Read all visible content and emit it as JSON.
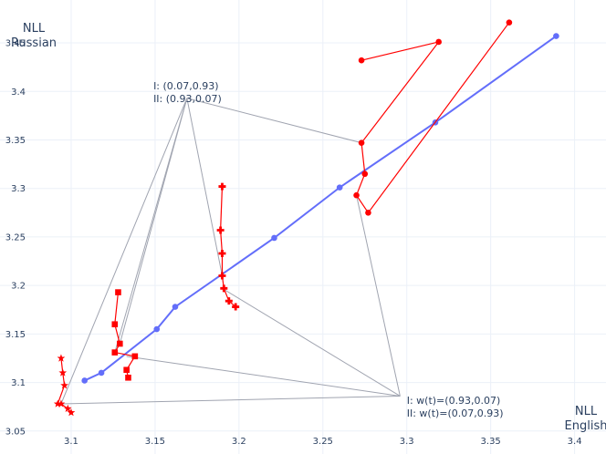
{
  "chart_data": {
    "type": "scatter",
    "xlabel_lines": [
      "NLL",
      "English"
    ],
    "ylabel_lines": [
      "NLL",
      "Russian"
    ],
    "xlim": [
      3.075,
      3.41
    ],
    "ylim": [
      3.047,
      3.466
    ],
    "xticks": [
      3.1,
      3.15,
      3.2,
      3.25,
      3.3,
      3.35,
      3.4
    ],
    "xtick_labels": [
      "3.1",
      "3.15",
      "3.2",
      "3.25",
      "3.3",
      "3.35",
      "3.4"
    ],
    "yticks": [
      3.05,
      3.1,
      3.15,
      3.2,
      3.25,
      3.3,
      3.35,
      3.4,
      3.45
    ],
    "ytick_labels": [
      "3.05",
      "3.1",
      "3.15",
      "3.2",
      "3.25",
      "3.3",
      "3.35",
      "3.4",
      "3.45"
    ],
    "grid": true,
    "colors": {
      "blue": "#636efa",
      "red": "#ff0000",
      "annotation_line": "#a0a4b0",
      "grid": "#ebf0f8"
    },
    "series": [
      {
        "mode": "lines+markers",
        "marker": "circle",
        "color": "#636efa",
        "x": [
          3.108,
          3.118,
          3.151,
          3.162,
          3.221,
          3.26,
          3.317,
          3.389
        ],
        "y": [
          3.102,
          3.11,
          3.155,
          3.178,
          3.249,
          3.301,
          3.368,
          3.457
        ]
      },
      {
        "mode": "lines+markers",
        "marker": "circle",
        "color": "#ff0000",
        "x": [
          3.273,
          3.319,
          3.273,
          3.275,
          3.27,
          3.277,
          3.361
        ],
        "y": [
          3.432,
          3.451,
          3.347,
          3.315,
          3.293,
          3.275,
          3.471
        ]
      },
      {
        "mode": "lines+markers",
        "marker": "cross",
        "color": "#ff0000",
        "x": [
          3.19,
          3.189,
          3.19,
          3.19,
          3.191,
          3.194,
          3.198
        ],
        "y": [
          3.302,
          3.257,
          3.233,
          3.21,
          3.197,
          3.184,
          3.178
        ]
      },
      {
        "mode": "lines+markers",
        "marker": "square",
        "color": "#ff0000",
        "x": [
          3.128,
          3.126,
          3.129,
          3.126,
          3.138,
          3.133,
          3.134
        ],
        "y": [
          3.193,
          3.16,
          3.14,
          3.131,
          3.127,
          3.113,
          3.105
        ]
      },
      {
        "mode": "lines+markers",
        "marker": "star",
        "color": "#ff0000",
        "x": [
          3.094,
          3.095,
          3.096,
          3.092,
          3.094,
          3.098,
          3.1
        ],
        "y": [
          3.125,
          3.11,
          3.097,
          3.078,
          3.078,
          3.073,
          3.069
        ]
      }
    ],
    "annotations": [
      {
        "lines": [
          "I:  (0.07,0.93)",
          "II: (0.93,0.07)"
        ],
        "anchor": "left",
        "x": 3.149,
        "y": 3.402,
        "pointer_origin": [
          3.169,
          3.393
        ],
        "targets": [
          [
            3.273,
            3.347
          ],
          [
            3.19,
            3.21
          ],
          [
            3.129,
            3.14
          ],
          [
            3.126,
            3.131
          ],
          [
            3.094,
            3.078
          ]
        ]
      },
      {
        "lines": [
          "I:  w(t)=(0.93,0.07)",
          "II: w(t)=(0.07,0.93)"
        ],
        "anchor": "right",
        "x": 3.3,
        "y": 3.078,
        "pointer_origin": [
          3.296,
          3.086
        ],
        "targets": [
          [
            3.27,
            3.293
          ],
          [
            3.19,
            3.197
          ],
          [
            3.133,
            3.127
          ],
          [
            3.094,
            3.078
          ]
        ]
      }
    ]
  }
}
